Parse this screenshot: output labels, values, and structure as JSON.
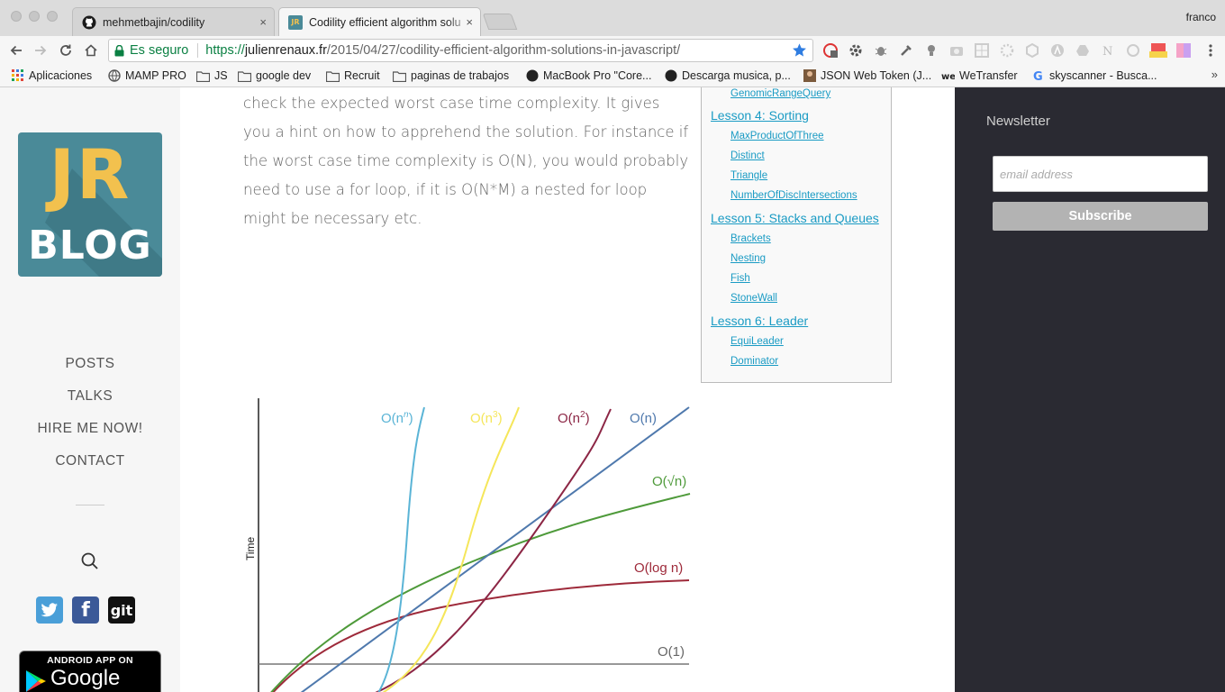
{
  "tabs": [
    {
      "title": "mehmetbajin/codility",
      "icon": "github-icon",
      "active": false
    },
    {
      "title": "Codility efficient algorithm solu",
      "icon": "jr-blog-favicon",
      "active": true
    }
  ],
  "tab_close": "×",
  "profile": "franco",
  "omnibox": {
    "secure_label": "Es seguro",
    "url_proto": "https://",
    "url_host": "julienrenaux.fr",
    "url_path": "/2015/04/27/codility-efficient-algorithm-solutions-in-javascript/"
  },
  "bookmarks": [
    {
      "label": "Aplicaciones",
      "icon": "apps-grid-icon"
    },
    {
      "label": "MAMP PRO",
      "icon": "globe-icon"
    },
    {
      "label": "JS",
      "icon": "folder-icon"
    },
    {
      "label": "google dev",
      "icon": "folder-icon"
    },
    {
      "label": "Recruit",
      "icon": "folder-icon"
    },
    {
      "label": "paginas de trabajos",
      "icon": "folder-icon"
    },
    {
      "label": "MacBook Pro \"Core...",
      "icon": "site-icon"
    },
    {
      "label": "Descarga musica, p...",
      "icon": "site-icon"
    },
    {
      "label": "JSON Web Token (J...",
      "icon": "avatar-icon"
    },
    {
      "label": "WeTransfer",
      "icon": "wetransfer-icon"
    },
    {
      "label": "skyscanner - Busca...",
      "icon": "google-icon"
    }
  ],
  "bookmarks_more": "»",
  "sidebar": {
    "logo_top": "JR",
    "logo_bottom": "BLOG",
    "nav": [
      "POSTS",
      "TALKS",
      "HIRE ME NOW!",
      "CONTACT"
    ],
    "social": [
      {
        "name": "twitter",
        "glyph": "",
        "color": "#4a9fd8"
      },
      {
        "name": "facebook",
        "glyph": "f",
        "color": "#3b5998"
      },
      {
        "name": "git",
        "glyph": "git",
        "color": "#111111"
      }
    ],
    "gplay_line1": "ANDROID APP ON",
    "gplay_line2": "Google play"
  },
  "article": {
    "paragraph": "check the expected worst case time complexity. It gives you a hint on how to apprehend the solution. For instance if the worst case time complexity is O(N), you would probably need to use a for loop, if it is O(N*M) a nested for loop might be necessary etc."
  },
  "toc": [
    {
      "label": "GenomicRangeQuery",
      "level": "sub"
    },
    {
      "label": "Lesson 4: Sorting",
      "level": "lesson"
    },
    {
      "label": "MaxProductOfThree",
      "level": "sub"
    },
    {
      "label": "Distinct",
      "level": "sub"
    },
    {
      "label": "Triangle",
      "level": "sub"
    },
    {
      "label": "NumberOfDiscIntersections",
      "level": "sub"
    },
    {
      "label": "Lesson 5: Stacks and Queues",
      "level": "lesson"
    },
    {
      "label": "Brackets",
      "level": "sub"
    },
    {
      "label": "Nesting",
      "level": "sub"
    },
    {
      "label": "Fish",
      "level": "sub"
    },
    {
      "label": "StoneWall",
      "level": "sub"
    },
    {
      "label": "Lesson 6: Leader",
      "level": "lesson"
    },
    {
      "label": "EquiLeader",
      "level": "sub"
    },
    {
      "label": "Dominator",
      "level": "sub"
    }
  ],
  "complexity_chart": {
    "ylabel": "Time",
    "curves": [
      {
        "label": "O(n^n)",
        "color": "#5ab4d6"
      },
      {
        "label": "O(n^3)",
        "color": "#f5e65a"
      },
      {
        "label": "O(n^2)",
        "color": "#8c2645"
      },
      {
        "label": "O(n)",
        "color": "#4f79ad"
      },
      {
        "label": "O(√n)",
        "color": "#4e9a3a"
      },
      {
        "label": "O(log n)",
        "color": "#9e2a3a"
      },
      {
        "label": "O(1)",
        "color": "#777777"
      }
    ]
  },
  "newsletter": {
    "title": "Newsletter",
    "placeholder": "email address",
    "button": "Subscribe"
  },
  "colors": {
    "link": "#1a9bc4",
    "logo_bg": "#4a8a98",
    "logo_jr": "#f2c14e",
    "rightbar_bg": "#2a2a32",
    "secure_green": "#0b8043"
  }
}
